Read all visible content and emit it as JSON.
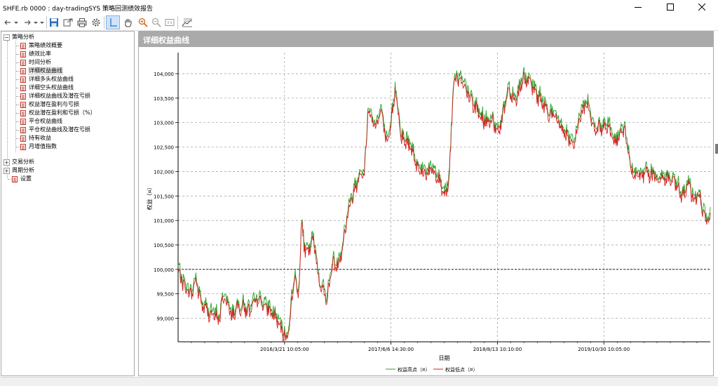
{
  "window": {
    "title": "SHFE.rb 0000 : day-tradingSYS 策略回测绩效报告",
    "minimize_icon": "minimize-icon",
    "maximize_icon": "maximize-icon",
    "close_icon": "close-icon"
  },
  "toolbar": {
    "icons": [
      "back-arrow-icon",
      "forward-arrow-icon",
      "dropdown-icon",
      "save-icon",
      "export-icon",
      "print-icon",
      "settings-gear-icon",
      "crosshair-cursor-icon",
      "hand-pan-icon",
      "zoom-in-icon",
      "zoom-out-icon",
      "zoom-reset-icon",
      "copy-chart-icon"
    ],
    "active": "crosshair-cursor-icon"
  },
  "tree": {
    "sections": [
      {
        "label": "策略分析",
        "expanded": true,
        "items": [
          "策略绩效概要",
          "绩效比率",
          "时间分析",
          "详细权益曲线",
          "详细多头权益曲线",
          "详细空头权益曲线",
          "详细权益曲线及潜在亏损",
          "权益潜在盈利与亏损",
          "权益潜在盈利和亏损（%）",
          "平仓权益曲线",
          "平仓权益曲线及潜在亏损",
          "持有收益",
          "月增值指数"
        ],
        "selected": "详细权益曲线"
      },
      {
        "label": "交易分析",
        "expanded": false
      },
      {
        "label": "周期分析",
        "expanded": false
      }
    ],
    "settings_label": "设置"
  },
  "panel": {
    "title": "详细权益曲线"
  },
  "chart_data": {
    "type": "line",
    "title": "",
    "xlabel": "日期",
    "ylabel": "权益（¤）",
    "x_ticks": [
      "2016/3/21 10:05:00",
      "2017/6/6 14:30:00",
      "2018/8/13 10:10:00",
      "2019/10/30 10:05:00"
    ],
    "x_tick_positions": [
      0.2,
      0.4,
      0.6,
      0.8
    ],
    "y_ticks": [
      99000,
      99500,
      100000,
      100500,
      101000,
      101500,
      102000,
      102500,
      103000,
      103500,
      104000
    ],
    "y_tick_labels": [
      "99,000",
      "99,500",
      "100,000",
      "100,500",
      "101,000",
      "101,500",
      "102,000",
      "102,500",
      "103,000",
      "103,500",
      "104,000"
    ],
    "ylim": [
      98520,
      104430
    ],
    "x_range": [
      0,
      1
    ],
    "reference_line": 100000,
    "grid": true,
    "legend_position": "bottom-center",
    "series": [
      {
        "name": "权益高点（¤）",
        "color": "#2ca02c"
      },
      {
        "name": "权益低点（¤）",
        "color": "#d62020"
      }
    ],
    "anchors": [
      [
        0.0,
        100000
      ],
      [
        0.01,
        99720
      ],
      [
        0.025,
        99500
      ],
      [
        0.033,
        99820
      ],
      [
        0.045,
        99280
      ],
      [
        0.06,
        99120
      ],
      [
        0.078,
        99020
      ],
      [
        0.086,
        99520
      ],
      [
        0.1,
        99080
      ],
      [
        0.118,
        99280
      ],
      [
        0.135,
        99150
      ],
      [
        0.15,
        99420
      ],
      [
        0.165,
        99250
      ],
      [
        0.183,
        99050
      ],
      [
        0.198,
        98680
      ],
      [
        0.205,
        98600
      ],
      [
        0.21,
        99000
      ],
      [
        0.218,
        99900
      ],
      [
        0.226,
        99450
      ],
      [
        0.232,
        100950
      ],
      [
        0.24,
        100300
      ],
      [
        0.255,
        100620
      ],
      [
        0.265,
        99780
      ],
      [
        0.28,
        99420
      ],
      [
        0.29,
        100150
      ],
      [
        0.3,
        100100
      ],
      [
        0.31,
        100550
      ],
      [
        0.32,
        101250
      ],
      [
        0.333,
        101700
      ],
      [
        0.343,
        102050
      ],
      [
        0.35,
        101900
      ],
      [
        0.357,
        103300
      ],
      [
        0.37,
        102950
      ],
      [
        0.382,
        103250
      ],
      [
        0.393,
        102500
      ],
      [
        0.4,
        102950
      ],
      [
        0.408,
        103750
      ],
      [
        0.42,
        102700
      ],
      [
        0.435,
        102560
      ],
      [
        0.45,
        102150
      ],
      [
        0.462,
        102000
      ],
      [
        0.478,
        102050
      ],
      [
        0.49,
        101850
      ],
      [
        0.503,
        101550
      ],
      [
        0.51,
        102000
      ],
      [
        0.518,
        103950
      ],
      [
        0.528,
        103900
      ],
      [
        0.54,
        103700
      ],
      [
        0.56,
        103300
      ],
      [
        0.575,
        103050
      ],
      [
        0.592,
        103000
      ],
      [
        0.605,
        102900
      ],
      [
        0.62,
        103700
      ],
      [
        0.635,
        103480
      ],
      [
        0.648,
        103950
      ],
      [
        0.662,
        103800
      ],
      [
        0.68,
        103500
      ],
      [
        0.695,
        103250
      ],
      [
        0.71,
        103100
      ],
      [
        0.725,
        102850
      ],
      [
        0.742,
        102500
      ],
      [
        0.755,
        103150
      ],
      [
        0.768,
        103450
      ],
      [
        0.782,
        102920
      ],
      [
        0.795,
        102900
      ],
      [
        0.808,
        103000
      ],
      [
        0.82,
        102600
      ],
      [
        0.838,
        102900
      ],
      [
        0.852,
        102050
      ],
      [
        0.86,
        101880
      ],
      [
        0.875,
        102000
      ],
      [
        0.89,
        101950
      ],
      [
        0.905,
        101880
      ],
      [
        0.92,
        101880
      ],
      [
        0.935,
        101750
      ],
      [
        0.948,
        101500
      ],
      [
        0.96,
        101750
      ],
      [
        0.97,
        101420
      ],
      [
        0.978,
        101600
      ],
      [
        0.988,
        101150
      ],
      [
        0.993,
        100980
      ],
      [
        1.0,
        101080
      ]
    ]
  }
}
